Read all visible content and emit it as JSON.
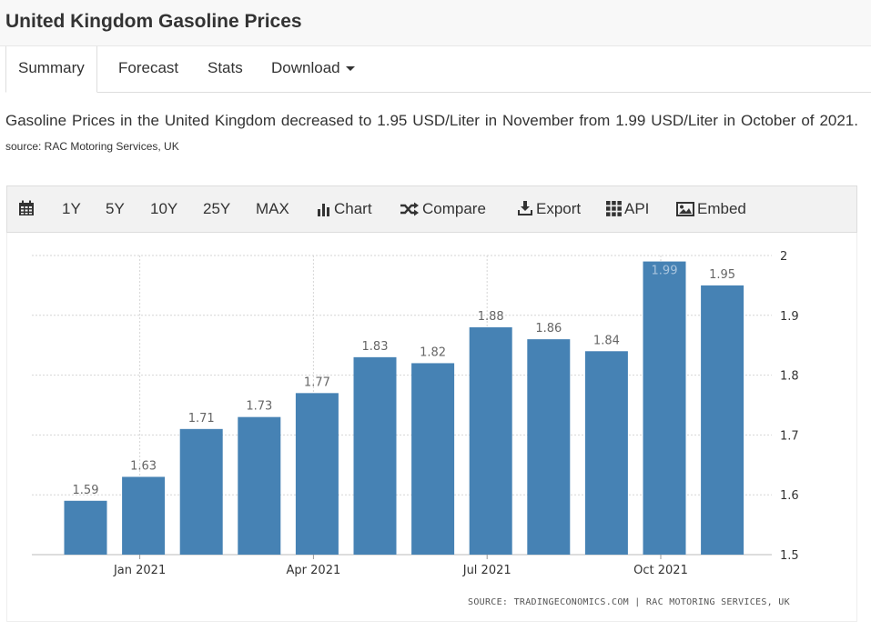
{
  "header": {
    "title": "United Kingdom Gasoline Prices"
  },
  "tabs": [
    {
      "label": "Summary",
      "active": true
    },
    {
      "label": "Forecast"
    },
    {
      "label": "Stats"
    },
    {
      "label": "Download"
    }
  ],
  "description": {
    "text": "Gasoline Prices in the United Kingdom decreased to 1.95 USD/Liter in November from 1.99 USD/Liter in October of 2021.",
    "source": "source: RAC Motoring Services, UK"
  },
  "toolbar": {
    "calendar_icon": "calendar-icon",
    "ranges": [
      "1Y",
      "5Y",
      "10Y",
      "25Y",
      "MAX"
    ],
    "chart": "Chart",
    "compare": "Compare",
    "export": "Export",
    "api": "API",
    "embed": "Embed"
  },
  "chart_source": "SOURCE: TRADINGECONOMICS.COM | RAC MOTORING SERVICES, UK",
  "chart_data": {
    "type": "bar",
    "categories": [
      "2020-12",
      "2021-01",
      "2021-02",
      "2021-03",
      "2021-04",
      "2021-05",
      "2021-06",
      "2021-07",
      "2021-08",
      "2021-09",
      "2021-10",
      "2021-11"
    ],
    "values": [
      1.59,
      1.63,
      1.71,
      1.73,
      1.77,
      1.83,
      1.82,
      1.88,
      1.86,
      1.84,
      1.99,
      1.95
    ],
    "x_tick_labels": [
      {
        "category": "2021-01",
        "label": "Jan 2021"
      },
      {
        "category": "2021-04",
        "label": "Apr 2021"
      },
      {
        "category": "2021-07",
        "label": "Jul 2021"
      },
      {
        "category": "2021-10",
        "label": "Oct 2021"
      }
    ],
    "y_ticks": [
      1.5,
      1.6,
      1.7,
      1.8,
      1.9,
      2
    ],
    "ylim": [
      1.5,
      2
    ],
    "y_axis_side": "right",
    "grid": true,
    "data_labels": true,
    "bar_color": "#4682b4",
    "title": "",
    "xlabel": "",
    "ylabel": ""
  }
}
